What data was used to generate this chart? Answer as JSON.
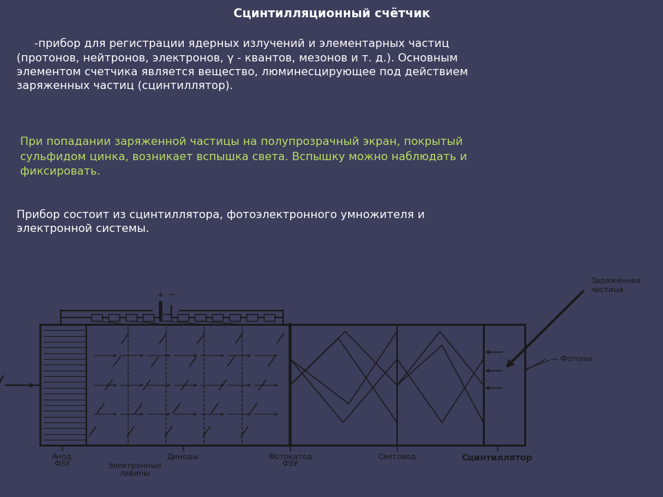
{
  "bg_top": "#3d3d5c",
  "bg_bottom": "#e8e8e8",
  "title": "Сцинтилляционный счётчик",
  "title_color": "#ffffff",
  "title_fontsize": 12.5,
  "para1": "     -прибор для регистрации ядерных излучений и элементарных частиц\n(протонов, нейтронов, электронов, γ - квантов, мезонов и т. д.). Основным\nэлементом счетчика является вещество, люминесцирующее под действием\nзаряженных частиц (сцинтиллятор).",
  "para1_color": "#ffffff",
  "para1_fontsize": 11.5,
  "para2": " При попадании заряженной частицы на полупрозрачный экран, покрытый\n сульфидом цинка, возникает вспышка света. Вспышку можно наблюдать и\n фиксировать.",
  "para2_color": "#b8e060",
  "para2_fontsize": 11.5,
  "para3": "Прибор состоит из сцинтиллятора, фотоэлектронного умножителя и\nэлектронной системы.",
  "para3_color": "#ffffff",
  "para3_fontsize": 11.5,
  "diagram_bg": "#e8e8e8",
  "line_color": "#1a1a1a",
  "label_color": "#1a1a1a",
  "label_fontsize": 8.0
}
